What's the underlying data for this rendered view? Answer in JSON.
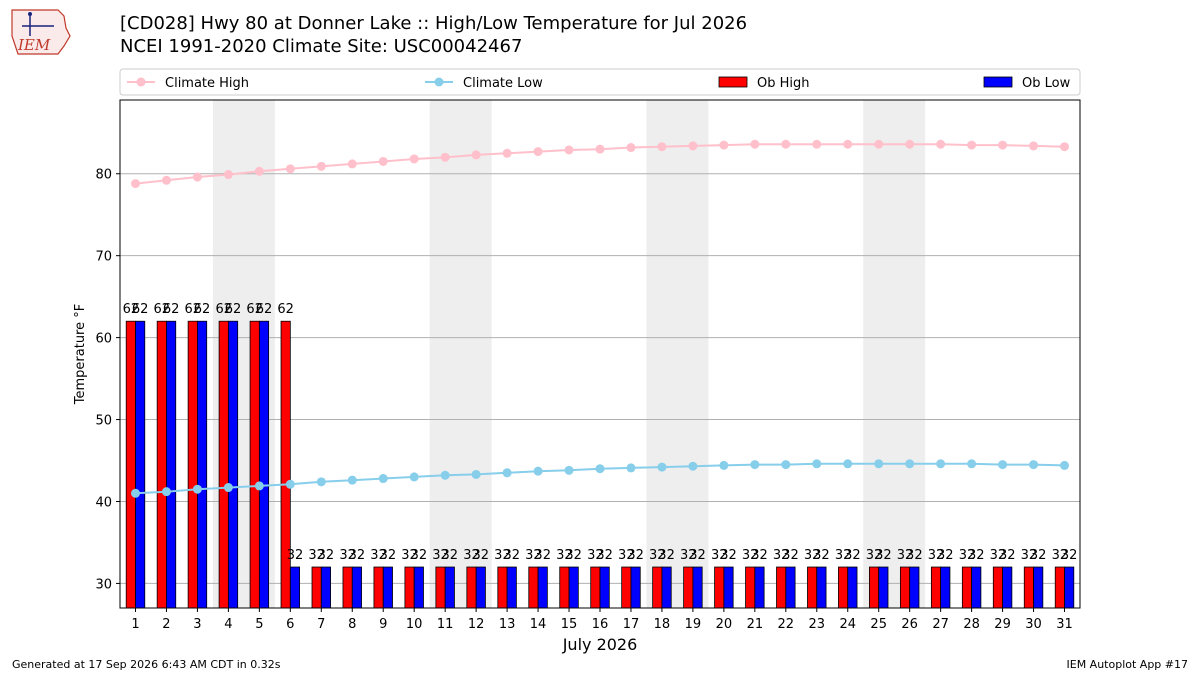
{
  "header": {
    "title": "[CD028] Hwy 80 at Donner Lake :: High/Low Temperature for Jul 2026",
    "subtitle": "NCEI 1991-2020 Climate Site: USC00042467"
  },
  "logo": {
    "text": "IEM"
  },
  "footer": {
    "generated": "Generated at 17 Sep 2026 6:43 AM CDT in 0.32s",
    "app": "IEM Autoplot App #17"
  },
  "chart_data": {
    "type": "bar",
    "xlabel": "July 2026",
    "ylabel": "Temperature °F",
    "ylim": [
      27,
      89
    ],
    "yticks": [
      30,
      40,
      50,
      60,
      70,
      80
    ],
    "grid": "horizontal",
    "legend_placement": "top, above plot",
    "weekend_shading": [
      [
        4,
        5
      ],
      [
        11,
        12
      ],
      [
        18,
        19
      ],
      [
        25,
        26
      ]
    ],
    "colors": {
      "ob_high": "#ff0000",
      "ob_low": "#0000ff",
      "climate_high": "#ffc0cb",
      "climate_low": "#87ceeb",
      "weekend": "#eeeeee"
    },
    "categories": [
      1,
      2,
      3,
      4,
      5,
      6,
      7,
      8,
      9,
      10,
      11,
      12,
      13,
      14,
      15,
      16,
      17,
      18,
      19,
      20,
      21,
      22,
      23,
      24,
      25,
      26,
      27,
      28,
      29,
      30,
      31
    ],
    "legend": [
      "Climate High",
      "Climate Low",
      "Ob High",
      "Ob Low"
    ],
    "series": [
      {
        "name": "Climate High",
        "kind": "line",
        "values": [
          78.8,
          79.2,
          79.6,
          79.9,
          80.3,
          80.6,
          80.9,
          81.2,
          81.5,
          81.8,
          82.0,
          82.3,
          82.5,
          82.7,
          82.9,
          83.0,
          83.2,
          83.3,
          83.4,
          83.5,
          83.6,
          83.6,
          83.6,
          83.6,
          83.6,
          83.6,
          83.6,
          83.5,
          83.5,
          83.4,
          83.3
        ]
      },
      {
        "name": "Climate Low",
        "kind": "line",
        "values": [
          41.0,
          41.2,
          41.5,
          41.7,
          41.9,
          42.1,
          42.4,
          42.6,
          42.8,
          43.0,
          43.2,
          43.3,
          43.5,
          43.7,
          43.8,
          44.0,
          44.1,
          44.2,
          44.3,
          44.4,
          44.5,
          44.5,
          44.6,
          44.6,
          44.6,
          44.6,
          44.6,
          44.6,
          44.5,
          44.5,
          44.4
        ]
      },
      {
        "name": "Ob High",
        "kind": "bar",
        "values": [
          62,
          62,
          62,
          62,
          62,
          62,
          32,
          32,
          32,
          32,
          32,
          32,
          32,
          32,
          32,
          32,
          32,
          32,
          32,
          32,
          32,
          32,
          32,
          32,
          32,
          32,
          32,
          32,
          32,
          32,
          32
        ]
      },
      {
        "name": "Ob Low",
        "kind": "bar",
        "values": [
          62,
          62,
          62,
          62,
          62,
          32,
          32,
          32,
          32,
          32,
          32,
          32,
          32,
          32,
          32,
          32,
          32,
          32,
          32,
          32,
          32,
          32,
          32,
          32,
          32,
          32,
          32,
          32,
          32,
          32,
          32
        ]
      }
    ]
  }
}
